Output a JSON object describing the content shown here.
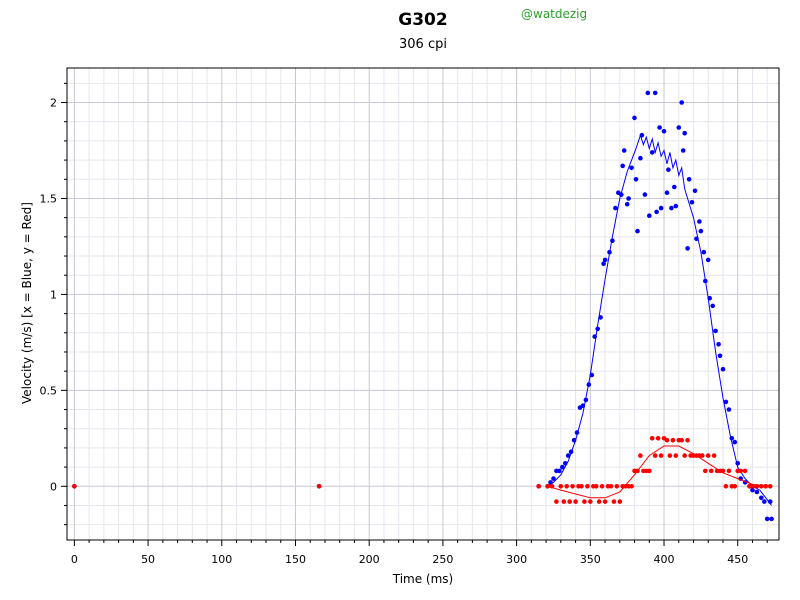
{
  "chart_data": {
    "type": "scatter",
    "title": "G302",
    "subtitle": "306 cpi",
    "watermark": "@watdezig",
    "xlabel": "Time (ms)",
    "ylabel": "Velocity (m/s) [x = Blue, y = Red]",
    "xlim": [
      -5,
      478
    ],
    "ylim": [
      -0.28,
      2.18
    ],
    "xticks": [
      0,
      50,
      100,
      150,
      200,
      250,
      300,
      350,
      400,
      450
    ],
    "yticks": [
      0,
      0.5,
      1,
      1.5,
      2
    ],
    "ytick_labels": [
      "0",
      "0.5",
      "1",
      "1.5",
      "2"
    ],
    "grid": true,
    "series": [
      {
        "color": "#0000ff",
        "kind": "points",
        "points": [
          [
            0,
            0
          ],
          [
            166,
            0
          ],
          [
            315,
            0
          ],
          [
            321,
            0
          ],
          [
            323,
            0.02
          ],
          [
            325,
            0.04
          ],
          [
            327,
            0.08
          ],
          [
            329,
            0.08
          ],
          [
            331,
            0.1
          ],
          [
            333,
            0.12
          ],
          [
            335,
            0.16
          ],
          [
            337,
            0.18
          ],
          [
            339,
            0.24
          ],
          [
            341,
            0.28
          ],
          [
            343,
            0.41
          ],
          [
            345,
            0.42
          ],
          [
            347,
            0.45
          ],
          [
            349,
            0.53
          ],
          [
            351,
            0.58
          ],
          [
            353,
            0.78
          ],
          [
            355,
            0.82
          ],
          [
            357,
            0.88
          ],
          [
            359,
            1.16
          ],
          [
            360,
            1.18
          ],
          [
            363,
            1.22
          ],
          [
            365,
            1.28
          ],
          [
            367,
            1.45
          ],
          [
            369,
            1.53
          ],
          [
            371,
            1.52
          ],
          [
            372,
            1.67
          ],
          [
            373,
            1.75
          ],
          [
            375,
            1.47
          ],
          [
            376,
            1.5
          ],
          [
            378,
            1.66
          ],
          [
            380,
            1.92
          ],
          [
            381,
            1.6
          ],
          [
            382,
            1.33
          ],
          [
            384,
            1.71
          ],
          [
            385,
            1.83
          ],
          [
            387,
            1.52
          ],
          [
            389,
            2.05
          ],
          [
            390,
            1.41
          ],
          [
            392,
            1.74
          ],
          [
            394,
            2.05
          ],
          [
            395,
            1.43
          ],
          [
            397,
            1.87
          ],
          [
            398,
            1.45
          ],
          [
            400,
            1.85
          ],
          [
            402,
            1.53
          ],
          [
            403,
            1.65
          ],
          [
            405,
            1.45
          ],
          [
            407,
            1.56
          ],
          [
            408,
            1.46
          ],
          [
            410,
            1.87
          ],
          [
            412,
            2.0
          ],
          [
            413,
            1.75
          ],
          [
            414,
            1.84
          ],
          [
            416,
            1.24
          ],
          [
            417,
            1.6
          ],
          [
            419,
            1.48
          ],
          [
            421,
            1.54
          ],
          [
            422,
            1.29
          ],
          [
            424,
            1.38
          ],
          [
            425,
            1.33
          ],
          [
            427,
            1.22
          ],
          [
            428,
            1.07
          ],
          [
            430,
            1.18
          ],
          [
            431,
            0.98
          ],
          [
            433,
            0.94
          ],
          [
            435,
            0.81
          ],
          [
            437,
            0.74
          ],
          [
            438,
            0.68
          ],
          [
            440,
            0.61
          ],
          [
            442,
            0.44
          ],
          [
            444,
            0.4
          ],
          [
            446,
            0.25
          ],
          [
            448,
            0.23
          ],
          [
            450,
            0.12
          ],
          [
            452,
            0.04
          ],
          [
            455,
            0.02
          ],
          [
            458,
            0.0
          ],
          [
            460,
            -0.02
          ],
          [
            463,
            -0.03
          ],
          [
            466,
            -0.06
          ],
          [
            468,
            -0.08
          ],
          [
            470,
            -0.17
          ],
          [
            472,
            -0.08
          ],
          [
            473,
            -0.17
          ]
        ]
      },
      {
        "color": "#0000ff",
        "kind": "line",
        "points": [
          [
            321,
            0
          ],
          [
            325,
            0.02
          ],
          [
            330,
            0.06
          ],
          [
            335,
            0.13
          ],
          [
            340,
            0.24
          ],
          [
            345,
            0.38
          ],
          [
            350,
            0.58
          ],
          [
            355,
            0.84
          ],
          [
            360,
            1.08
          ],
          [
            365,
            1.3
          ],
          [
            370,
            1.5
          ],
          [
            375,
            1.64
          ],
          [
            378,
            1.7
          ],
          [
            381,
            1.76
          ],
          [
            384,
            1.83
          ],
          [
            386,
            1.78
          ],
          [
            388,
            1.82
          ],
          [
            390,
            1.76
          ],
          [
            392,
            1.81
          ],
          [
            394,
            1.74
          ],
          [
            396,
            1.79
          ],
          [
            398,
            1.72
          ],
          [
            400,
            1.75
          ],
          [
            402,
            1.68
          ],
          [
            404,
            1.74
          ],
          [
            406,
            1.66
          ],
          [
            408,
            1.7
          ],
          [
            410,
            1.62
          ],
          [
            412,
            1.66
          ],
          [
            414,
            1.55
          ],
          [
            416,
            1.5
          ],
          [
            420,
            1.4
          ],
          [
            425,
            1.22
          ],
          [
            430,
            0.98
          ],
          [
            435,
            0.7
          ],
          [
            440,
            0.46
          ],
          [
            445,
            0.26
          ],
          [
            450,
            0.1
          ],
          [
            455,
            0.04
          ],
          [
            460,
            0.0
          ],
          [
            465,
            -0.02
          ],
          [
            470,
            -0.07
          ],
          [
            473,
            -0.1
          ]
        ]
      },
      {
        "color": "#ff0000",
        "kind": "points",
        "points": [
          [
            0,
            0
          ],
          [
            166,
            0
          ],
          [
            315,
            0
          ],
          [
            321,
            0
          ],
          [
            324,
            0
          ],
          [
            327,
            -0.08
          ],
          [
            330,
            0
          ],
          [
            332,
            -0.08
          ],
          [
            334,
            0
          ],
          [
            336,
            -0.08
          ],
          [
            338,
            0
          ],
          [
            340,
            -0.08
          ],
          [
            342,
            0
          ],
          [
            344,
            0
          ],
          [
            346,
            -0.08
          ],
          [
            348,
            0
          ],
          [
            350,
            -0.08
          ],
          [
            352,
            0
          ],
          [
            354,
            0
          ],
          [
            356,
            -0.08
          ],
          [
            358,
            0
          ],
          [
            360,
            -0.08
          ],
          [
            362,
            0
          ],
          [
            364,
            0
          ],
          [
            366,
            -0.08
          ],
          [
            368,
            0
          ],
          [
            370,
            -0.08
          ],
          [
            372,
            0
          ],
          [
            374,
            0
          ],
          [
            376,
            0
          ],
          [
            378,
            0
          ],
          [
            380,
            0.08
          ],
          [
            382,
            0.08
          ],
          [
            384,
            0.16
          ],
          [
            386,
            0.08
          ],
          [
            388,
            0.08
          ],
          [
            390,
            0.08
          ],
          [
            392,
            0.25
          ],
          [
            394,
            0.16
          ],
          [
            396,
            0.25
          ],
          [
            398,
            0.16
          ],
          [
            400,
            0.25
          ],
          [
            402,
            0.24
          ],
          [
            404,
            0.16
          ],
          [
            406,
            0.24
          ],
          [
            408,
            0.16
          ],
          [
            410,
            0.24
          ],
          [
            412,
            0.24
          ],
          [
            414,
            0.16
          ],
          [
            416,
            0.24
          ],
          [
            418,
            0.16
          ],
          [
            420,
            0.16
          ],
          [
            422,
            0.16
          ],
          [
            424,
            0.16
          ],
          [
            426,
            0.16
          ],
          [
            428,
            0.08
          ],
          [
            430,
            0.16
          ],
          [
            432,
            0.08
          ],
          [
            434,
            0.16
          ],
          [
            436,
            0.08
          ],
          [
            438,
            0.08
          ],
          [
            440,
            0.08
          ],
          [
            442,
            0
          ],
          [
            444,
            0.08
          ],
          [
            446,
            0
          ],
          [
            448,
            0
          ],
          [
            450,
            0.08
          ],
          [
            452,
            0.08
          ],
          [
            455,
            0.08
          ],
          [
            458,
            0
          ],
          [
            460,
            0
          ],
          [
            463,
            0
          ],
          [
            466,
            0
          ],
          [
            469,
            0
          ],
          [
            472,
            0
          ]
        ]
      },
      {
        "color": "#ff0000",
        "kind": "line",
        "points": [
          [
            321,
            0
          ],
          [
            330,
            -0.02
          ],
          [
            340,
            -0.04
          ],
          [
            350,
            -0.06
          ],
          [
            360,
            -0.06
          ],
          [
            370,
            -0.03
          ],
          [
            380,
            0.06
          ],
          [
            390,
            0.16
          ],
          [
            400,
            0.21
          ],
          [
            410,
            0.21
          ],
          [
            420,
            0.17
          ],
          [
            430,
            0.12
          ],
          [
            440,
            0.07
          ],
          [
            450,
            0.04
          ],
          [
            460,
            0.01
          ],
          [
            470,
            0
          ]
        ]
      }
    ]
  }
}
